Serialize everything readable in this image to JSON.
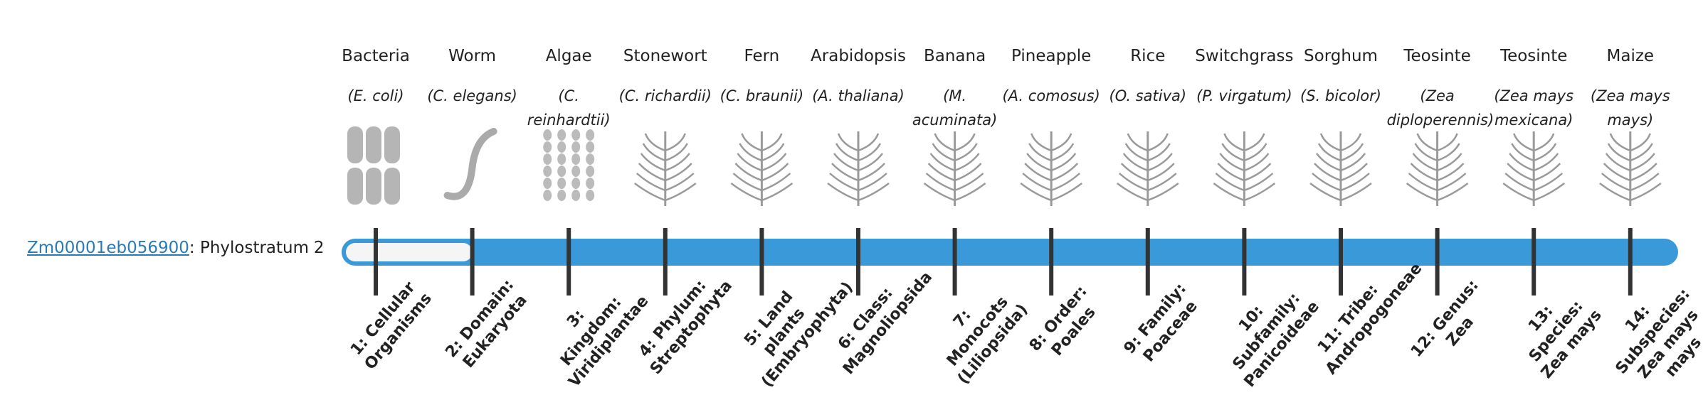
{
  "gene": {
    "id": "Zm00001eb056900",
    "label": ": Phylostratum",
    "phylostratum": 2
  },
  "organisms": [
    {
      "name": "Bacteria",
      "species": "(E. coli)",
      "rank": "1: Cellular Organisms"
    },
    {
      "name": "Worm",
      "species": "(C. elegans)",
      "rank": "2: Domain: Eukaryota"
    },
    {
      "name": "Algae",
      "species": "(C. reinhardtii)",
      "rank": "3: Kingdom: Viridiplantae"
    },
    {
      "name": "Stonewort",
      "species": "(C. richardii)",
      "rank": "4: Phylum: Streptophyta"
    },
    {
      "name": "Fern",
      "species": "(C. braunii)",
      "rank": "5: Land plants (Embryophyta)"
    },
    {
      "name": "Arabidopsis",
      "species": "(A. thaliana)",
      "rank": "6: Class: Magnoliopsida"
    },
    {
      "name": "Banana",
      "species": "(M. acuminata)",
      "rank": "7: Monocots (Liliopsida)"
    },
    {
      "name": "Pineapple",
      "species": "(A. comosus)",
      "rank": "8: Order: Poales"
    },
    {
      "name": "Rice",
      "species": "(O. sativa)",
      "rank": "9: Family: Poaceae"
    },
    {
      "name": "Switchgrass",
      "species": "(P. virgatum)",
      "rank": "10: Subfamily: Panicoideae"
    },
    {
      "name": "Sorghum",
      "species": "(S. bicolor)",
      "rank": "11: Tribe: Andropogoneae"
    },
    {
      "name": "Teosinte",
      "species": "(Zea diploperennis)",
      "rank": "12: Genus: Zea"
    },
    {
      "name": "Teosinte",
      "species": "(Zea mays mexicana)",
      "rank": "13: Species: Zea mays"
    },
    {
      "name": "Maize",
      "species": "(Zea mays mays)",
      "rank": "14: Subspecies: Zea mays mays"
    }
  ]
}
